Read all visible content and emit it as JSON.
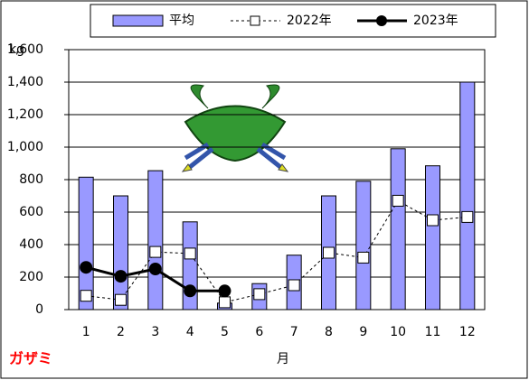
{
  "chart_data": {
    "type": "bar-line",
    "y_label": "kg",
    "x_label": "月",
    "annotation": "ガザミ",
    "categories": [
      "1",
      "2",
      "3",
      "4",
      "5",
      "6",
      "7",
      "8",
      "9",
      "10",
      "11",
      "12"
    ],
    "series": [
      {
        "name": "平均",
        "kind": "bar",
        "color": "#9999ff",
        "values": [
          815,
          700,
          855,
          540,
          40,
          160,
          335,
          700,
          790,
          990,
          885,
          1400
        ]
      },
      {
        "name": "2022年",
        "kind": "line-dashed",
        "color": "#000000",
        "values": [
          85,
          60,
          355,
          345,
          45,
          95,
          150,
          350,
          320,
          670,
          550,
          570
        ]
      },
      {
        "name": "2023年",
        "kind": "line",
        "color": "#000000",
        "values": [
          260,
          205,
          250,
          115,
          115,
          null,
          null,
          null,
          null,
          null,
          null,
          null
        ]
      }
    ],
    "ylim": [
      0,
      1600
    ],
    "yticks": [
      0,
      200,
      400,
      600,
      800,
      {
        "value": 1000,
        "label": "1,000"
      },
      {
        "value": 1200,
        "label": "1,200"
      },
      {
        "value": 1400,
        "label": "1,400"
      },
      {
        "value": 1600,
        "label": "1,600"
      }
    ],
    "grid": true
  }
}
